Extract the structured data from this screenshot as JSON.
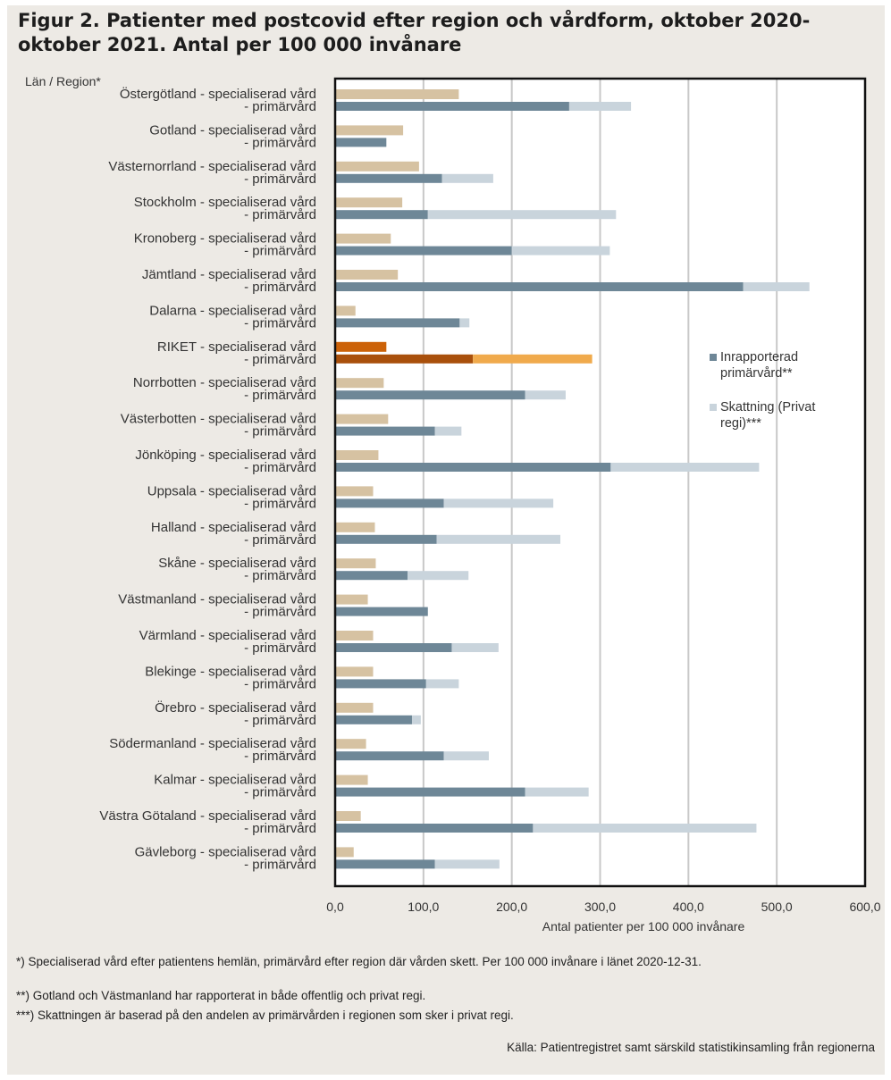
{
  "title": "Figur 2. Patienter med postcovid efter region och vårdform, oktober 2020-oktober 2021. Antal per 100 000 invånare",
  "footnotes": [
    "*) Specialiserad vård efter patientens hemlän, primärvård efter region där vården skett. Per 100 000 invånare i länet 2020-12-31.",
    "**) Gotland och Västmanland har rapporterat in både offentlig och privat regi.",
    "***) Skattningen är baserad på den andelen av primärvården i regionen som sker i privat regi."
  ],
  "source": "Källa: Patientregistret samt särskild statistikinsamling från regionerna",
  "colors": {
    "specialist": "#d6c2a2",
    "primary": "#6e8797",
    "estimate": "#c9d4dc",
    "riket_specialist": "#cc6208",
    "riket_primary": "#a9500c",
    "riket_estimate": "#f0aa4c",
    "grid": "#c8c8c8"
  },
  "chart_data": {
    "type": "bar",
    "orientation": "horizontal",
    "stacked": true,
    "category_header": "Län / Region*",
    "xlabel": "Antal patienter per 100 000 invånare",
    "xlim": [
      0,
      600
    ],
    "xticks": [
      "0,0",
      "100,0",
      "200,0",
      "300,0",
      "400,0",
      "500,0",
      "600,0"
    ],
    "grid": true,
    "legend_position": "right",
    "legend": [
      {
        "label": "Inrapporterad primärvård**",
        "color": "#6e8797"
      },
      {
        "label": "Skattning (Privat regi)***",
        "color": "#c9d4dc"
      }
    ],
    "categories": [
      {
        "name": "Östergötland",
        "specialist": 140,
        "primary": 265,
        "estimate": 70
      },
      {
        "name": "Gotland",
        "specialist": 77,
        "primary": 58,
        "estimate": 0
      },
      {
        "name": "Västernorrland",
        "specialist": 95,
        "primary": 121,
        "estimate": 58
      },
      {
        "name": "Stockholm",
        "specialist": 76,
        "primary": 105,
        "estimate": 213
      },
      {
        "name": "Kronoberg",
        "specialist": 63,
        "primary": 200,
        "estimate": 111
      },
      {
        "name": "Jämtland",
        "specialist": 71,
        "primary": 462,
        "estimate": 75
      },
      {
        "name": "Dalarna",
        "specialist": 23,
        "primary": 141,
        "estimate": 11
      },
      {
        "name": "RIKET",
        "specialist": 58,
        "primary": 156,
        "estimate": 135,
        "highlight": true
      },
      {
        "name": "Norrbotten",
        "specialist": 55,
        "primary": 215,
        "estimate": 46
      },
      {
        "name": "Västerbotten",
        "specialist": 60,
        "primary": 113,
        "estimate": 30
      },
      {
        "name": "Jönköping",
        "specialist": 49,
        "primary": 312,
        "estimate": 168
      },
      {
        "name": "Uppsala",
        "specialist": 43,
        "primary": 123,
        "estimate": 124
      },
      {
        "name": "Halland",
        "specialist": 45,
        "primary": 115,
        "estimate": 140
      },
      {
        "name": "Skåne",
        "specialist": 46,
        "primary": 82,
        "estimate": 69
      },
      {
        "name": "Västmanland",
        "specialist": 37,
        "primary": 105,
        "estimate": 0
      },
      {
        "name": "Värmland",
        "specialist": 43,
        "primary": 132,
        "estimate": 53
      },
      {
        "name": "Blekinge",
        "specialist": 43,
        "primary": 103,
        "estimate": 37
      },
      {
        "name": "Örebro",
        "specialist": 43,
        "primary": 87,
        "estimate": 10
      },
      {
        "name": "Södermanland",
        "specialist": 35,
        "primary": 123,
        "estimate": 51
      },
      {
        "name": "Kalmar",
        "specialist": 37,
        "primary": 215,
        "estimate": 72
      },
      {
        "name": "Västra Götaland",
        "specialist": 29,
        "primary": 224,
        "estimate": 253
      },
      {
        "name": "Gävleborg",
        "specialist": 21,
        "primary": 113,
        "estimate": 73
      }
    ],
    "line1_suffix": " - specialiserad vård",
    "line2_text": "- primärvård"
  }
}
